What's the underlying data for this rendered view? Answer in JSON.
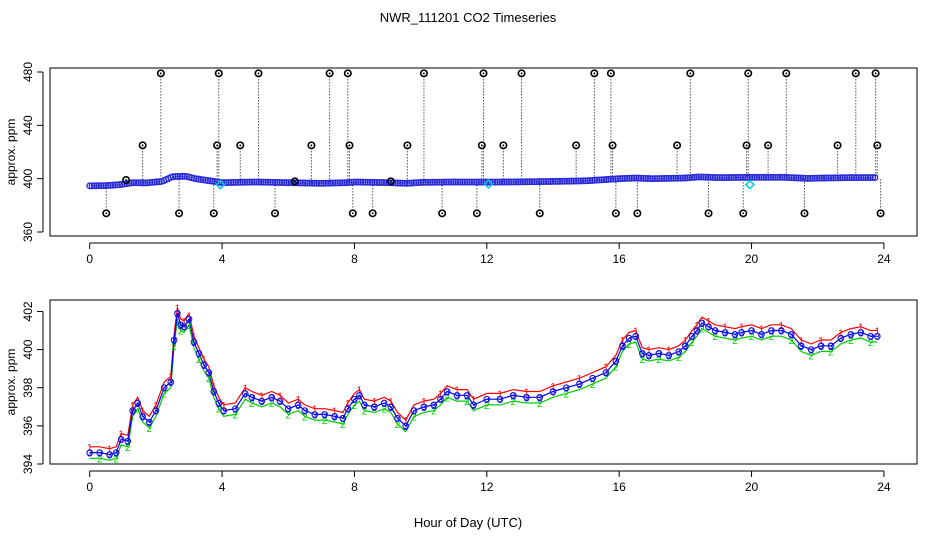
{
  "figure": {
    "title": "NWR_111201  CO2 Timeseries",
    "xlabel": "Hour of Day (UTC)"
  },
  "chart_data": [
    {
      "type": "scatter",
      "name": "raw-panel",
      "ylabel": "approx. ppm",
      "xlim": [
        -1.2,
        25
      ],
      "ylim": [
        357,
        483
      ],
      "xticks": [
        0,
        4,
        8,
        12,
        16,
        20,
        24
      ],
      "yticks": [
        360,
        400,
        440,
        480
      ],
      "baseline": [
        [
          0,
          394.6
        ],
        [
          0.5,
          394.8
        ],
        [
          0.9,
          395.5
        ],
        [
          1.3,
          397
        ],
        [
          1.7,
          396.8
        ],
        [
          2.2,
          398
        ],
        [
          2.5,
          401.5
        ],
        [
          2.9,
          401.8
        ],
        [
          3.2,
          400
        ],
        [
          3.6,
          398.5
        ],
        [
          4,
          397
        ],
        [
          5,
          397.5
        ],
        [
          6,
          397
        ],
        [
          7,
          396.5
        ],
        [
          7.8,
          397
        ],
        [
          8,
          397.5
        ],
        [
          9,
          397
        ],
        [
          9.6,
          396.5
        ],
        [
          10,
          397.2
        ],
        [
          11,
          397.5
        ],
        [
          12,
          397.4
        ],
        [
          13,
          397.6
        ],
        [
          14,
          397.9
        ],
        [
          15,
          398.4
        ],
        [
          16,
          400
        ],
        [
          16.5,
          400.5
        ],
        [
          17,
          400
        ],
        [
          18,
          400.5
        ],
        [
          18.4,
          401.3
        ],
        [
          19,
          400.8
        ],
        [
          20,
          401
        ],
        [
          21,
          401
        ],
        [
          21.7,
          400.2
        ],
        [
          22,
          400.4
        ],
        [
          23,
          400.8
        ],
        [
          23.8,
          400.8
        ]
      ],
      "outliers": [
        [
          0.5,
          374
        ],
        [
          1.1,
          399
        ],
        [
          1.6,
          425
        ],
        [
          2.15,
          479
        ],
        [
          2.7,
          374
        ],
        [
          3.75,
          374
        ],
        [
          3.85,
          425
        ],
        [
          3.9,
          479
        ],
        [
          4.55,
          425
        ],
        [
          5.1,
          479
        ],
        [
          5.6,
          374
        ],
        [
          6.2,
          398
        ],
        [
          6.7,
          425
        ],
        [
          7.25,
          479
        ],
        [
          7.8,
          479
        ],
        [
          7.85,
          425
        ],
        [
          7.95,
          374
        ],
        [
          8.55,
          374
        ],
        [
          9.1,
          398
        ],
        [
          9.6,
          425
        ],
        [
          10.1,
          479
        ],
        [
          10.65,
          374
        ],
        [
          11.7,
          374
        ],
        [
          11.85,
          425
        ],
        [
          11.9,
          479
        ],
        [
          12.5,
          425
        ],
        [
          13.05,
          479
        ],
        [
          13.6,
          374
        ],
        [
          14.7,
          425
        ],
        [
          15.25,
          479
        ],
        [
          15.75,
          479
        ],
        [
          15.8,
          425
        ],
        [
          15.9,
          374
        ],
        [
          16.55,
          374
        ],
        [
          17.75,
          425
        ],
        [
          18.15,
          479
        ],
        [
          18.7,
          374
        ],
        [
          19.75,
          374
        ],
        [
          19.85,
          425
        ],
        [
          19.9,
          479
        ],
        [
          20.5,
          425
        ],
        [
          21.05,
          479
        ],
        [
          21.6,
          374
        ],
        [
          22.6,
          425
        ],
        [
          23.15,
          479
        ],
        [
          23.75,
          479
        ],
        [
          23.8,
          425
        ],
        [
          23.9,
          374
        ]
      ],
      "flagged": [
        [
          3.95,
          395.5
        ],
        [
          12.05,
          396
        ],
        [
          19.95,
          395.5
        ]
      ]
    },
    {
      "type": "line",
      "name": "detail-panel",
      "ylabel": "approx. ppm",
      "xlim": [
        -1.2,
        25
      ],
      "ylim": [
        394,
        402.6
      ],
      "xticks": [
        0,
        4,
        8,
        12,
        16,
        20,
        24
      ],
      "yticks": [
        394,
        396,
        398,
        400,
        402
      ],
      "series": [
        {
          "name": "1",
          "color": "#ff0000",
          "offset": 0.3
        },
        {
          "name": "2",
          "color": "#00cc00",
          "offset": -0.3
        },
        {
          "name": "3",
          "color": "#0000ff",
          "offset": 0.0
        }
      ],
      "points": [
        [
          0,
          394.6
        ],
        [
          0.3,
          394.6
        ],
        [
          0.6,
          394.5
        ],
        [
          0.8,
          394.6
        ],
        [
          0.95,
          395.3
        ],
        [
          1.15,
          395.2
        ],
        [
          1.3,
          396.8
        ],
        [
          1.45,
          397.2
        ],
        [
          1.6,
          396.5
        ],
        [
          1.8,
          396.2
        ],
        [
          2.0,
          396.8
        ],
        [
          2.25,
          398
        ],
        [
          2.45,
          398.3
        ],
        [
          2.55,
          400.5
        ],
        [
          2.65,
          401.9
        ],
        [
          2.75,
          401.3
        ],
        [
          2.85,
          401.2
        ],
        [
          3.0,
          401.6
        ],
        [
          3.15,
          400.4
        ],
        [
          3.3,
          399.8
        ],
        [
          3.45,
          399.2
        ],
        [
          3.6,
          398.8
        ],
        [
          3.75,
          397.8
        ],
        [
          3.9,
          397.2
        ],
        [
          4.05,
          396.8
        ],
        [
          4.4,
          396.9
        ],
        [
          4.7,
          397.7
        ],
        [
          4.9,
          397.5
        ],
        [
          5.2,
          397.3
        ],
        [
          5.5,
          397.5
        ],
        [
          5.75,
          397.3
        ],
        [
          6.0,
          396.9
        ],
        [
          6.3,
          397.1
        ],
        [
          6.5,
          396.8
        ],
        [
          6.8,
          396.6
        ],
        [
          7.1,
          396.6
        ],
        [
          7.4,
          396.5
        ],
        [
          7.65,
          396.4
        ],
        [
          7.8,
          396.9
        ],
        [
          8.0,
          397.4
        ],
        [
          8.15,
          397.6
        ],
        [
          8.3,
          397.1
        ],
        [
          8.6,
          397.0
        ],
        [
          8.9,
          397.2
        ],
        [
          9.1,
          397.0
        ],
        [
          9.3,
          396.4
        ],
        [
          9.55,
          396.0
        ],
        [
          9.8,
          396.8
        ],
        [
          10.1,
          397.0
        ],
        [
          10.4,
          397.1
        ],
        [
          10.6,
          397.4
        ],
        [
          10.8,
          397.8
        ],
        [
          11.1,
          397.6
        ],
        [
          11.4,
          397.6
        ],
        [
          11.6,
          397.1
        ],
        [
          12.0,
          397.4
        ],
        [
          12.4,
          397.4
        ],
        [
          12.8,
          397.6
        ],
        [
          13.2,
          397.5
        ],
        [
          13.6,
          397.5
        ],
        [
          14.0,
          397.8
        ],
        [
          14.4,
          398.0
        ],
        [
          14.8,
          398.2
        ],
        [
          15.2,
          398.5
        ],
        [
          15.6,
          398.8
        ],
        [
          15.9,
          399.4
        ],
        [
          16.1,
          400.2
        ],
        [
          16.3,
          400.6
        ],
        [
          16.5,
          400.7
        ],
        [
          16.7,
          399.8
        ],
        [
          16.9,
          399.7
        ],
        [
          17.2,
          399.8
        ],
        [
          17.5,
          399.7
        ],
        [
          17.8,
          399.9
        ],
        [
          18.0,
          400.2
        ],
        [
          18.2,
          400.7
        ],
        [
          18.35,
          401.0
        ],
        [
          18.5,
          401.4
        ],
        [
          18.7,
          401.2
        ],
        [
          18.9,
          401.0
        ],
        [
          19.2,
          400.9
        ],
        [
          19.5,
          400.8
        ],
        [
          19.7,
          400.9
        ],
        [
          20.0,
          401.0
        ],
        [
          20.3,
          400.8
        ],
        [
          20.6,
          401.0
        ],
        [
          20.9,
          401.0
        ],
        [
          21.2,
          400.8
        ],
        [
          21.5,
          400.2
        ],
        [
          21.8,
          400.0
        ],
        [
          22.1,
          400.2
        ],
        [
          22.4,
          400.2
        ],
        [
          22.7,
          400.6
        ],
        [
          23.0,
          400.8
        ],
        [
          23.3,
          400.9
        ],
        [
          23.6,
          400.7
        ],
        [
          23.8,
          400.7
        ]
      ]
    }
  ]
}
